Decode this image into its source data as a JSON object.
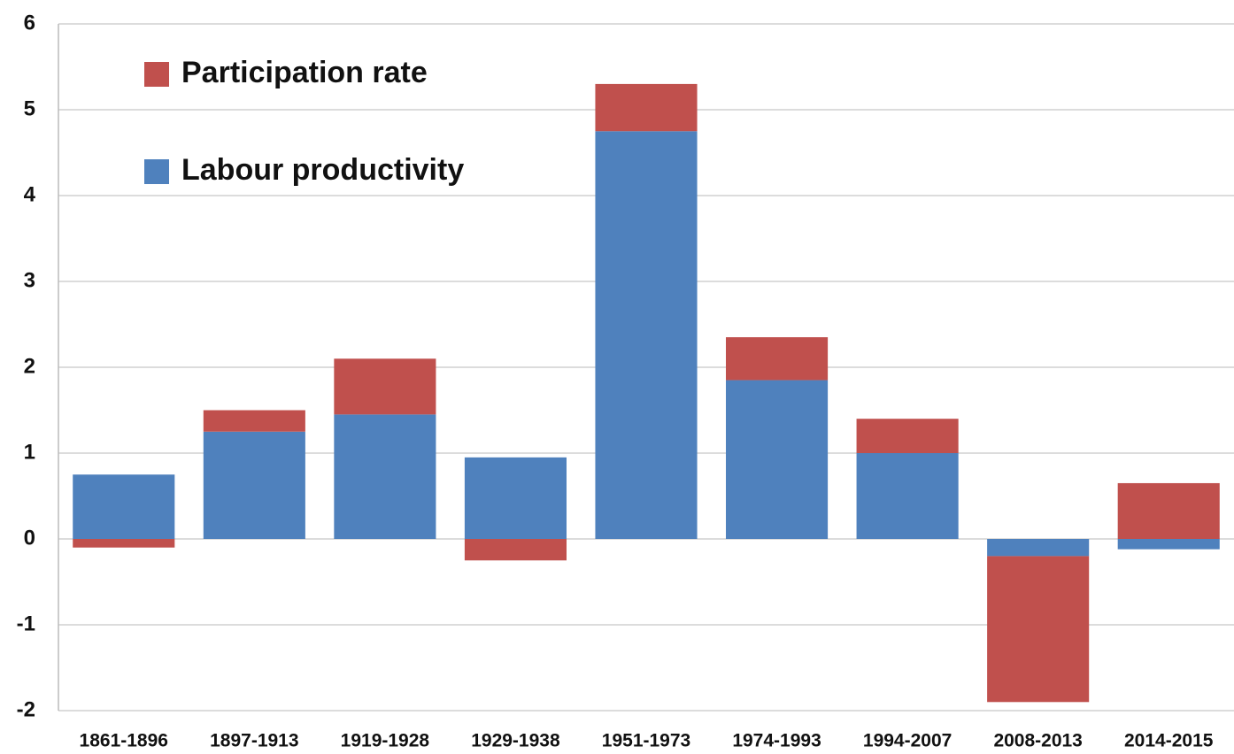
{
  "chart_data": {
    "type": "stacked_bar",
    "categories": [
      "1861-1896",
      "1897-1913",
      "1919-1928",
      "1929-1938",
      "1951-1973",
      "1974-1993",
      "1994-2007",
      "2008-2013",
      "2014-2015"
    ],
    "series": [
      {
        "name": "Labour productivity",
        "color": "#4f81bd",
        "values": [
          0.75,
          1.25,
          1.45,
          0.95,
          4.75,
          1.85,
          1.0,
          -0.2,
          -0.12
        ]
      },
      {
        "name": "Participation rate",
        "color": "#c0504d",
        "values": [
          -0.1,
          0.25,
          0.65,
          -0.25,
          0.55,
          0.5,
          0.4,
          -1.7,
          0.65
        ]
      }
    ],
    "ylim": [
      -2,
      6
    ],
    "yticks": [
      -2,
      -1,
      0,
      1,
      2,
      3,
      4,
      5,
      6
    ],
    "grid": true
  }
}
